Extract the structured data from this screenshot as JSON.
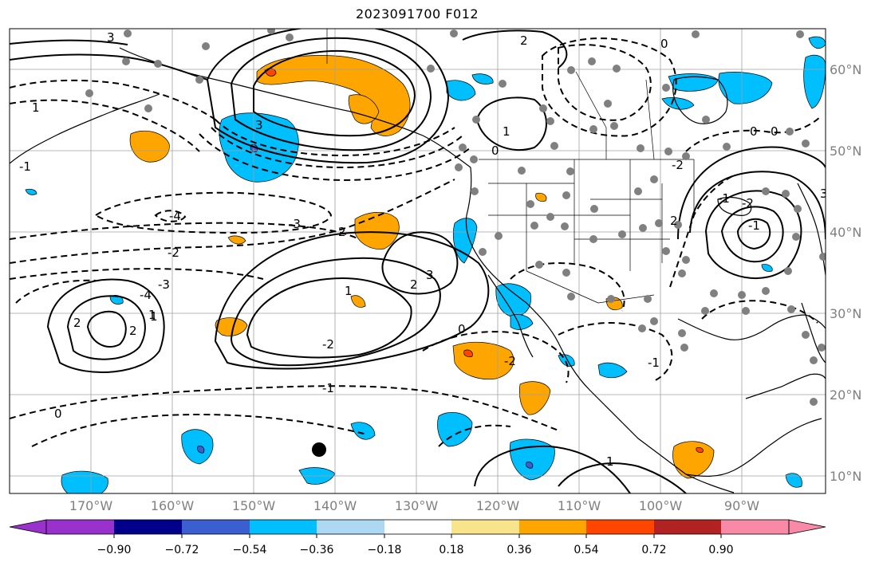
{
  "title": "2023091700 F012",
  "lon_labels": [
    "170°W",
    "160°W",
    "150°W",
    "140°W",
    "130°W",
    "120°W",
    "110°W",
    "100°W",
    "90°W"
  ],
  "lat_labels": [
    "60°N",
    "50°N",
    "40°N",
    "30°N",
    "20°N",
    "10°N"
  ],
  "colorbar": {
    "colors": [
      "#9932cc",
      "#00008b",
      "#3b5fd0",
      "#00bfff",
      "#add8f4",
      "#ffffff",
      "#f8e48a",
      "#ffa500",
      "#ff4500",
      "#b22222",
      "#f88aa8"
    ],
    "tick_labels": [
      "−0.90",
      "−0.72",
      "−0.54",
      "−0.36",
      "−0.18",
      "0.18",
      "0.36",
      "0.54",
      "0.72",
      "0.90"
    ]
  },
  "contour_labels": [
    "3",
    "2",
    "1",
    "0",
    "-1",
    "-2",
    "-3",
    "-4",
    "2",
    "1",
    "0",
    "-1",
    "-2",
    "3",
    "2",
    "1",
    "0",
    "-1",
    "-2",
    "-3",
    "-4",
    "2",
    "1",
    "0",
    "-1",
    "-2",
    "3",
    "2",
    "1",
    "0",
    "-1",
    "-2",
    "0",
    "1",
    "2",
    "3"
  ],
  "colors": {
    "grid": "#a0a0a0",
    "station": "#808080",
    "orange": "#ffa500",
    "cyan": "#00bfff",
    "red": "#ff4500"
  }
}
